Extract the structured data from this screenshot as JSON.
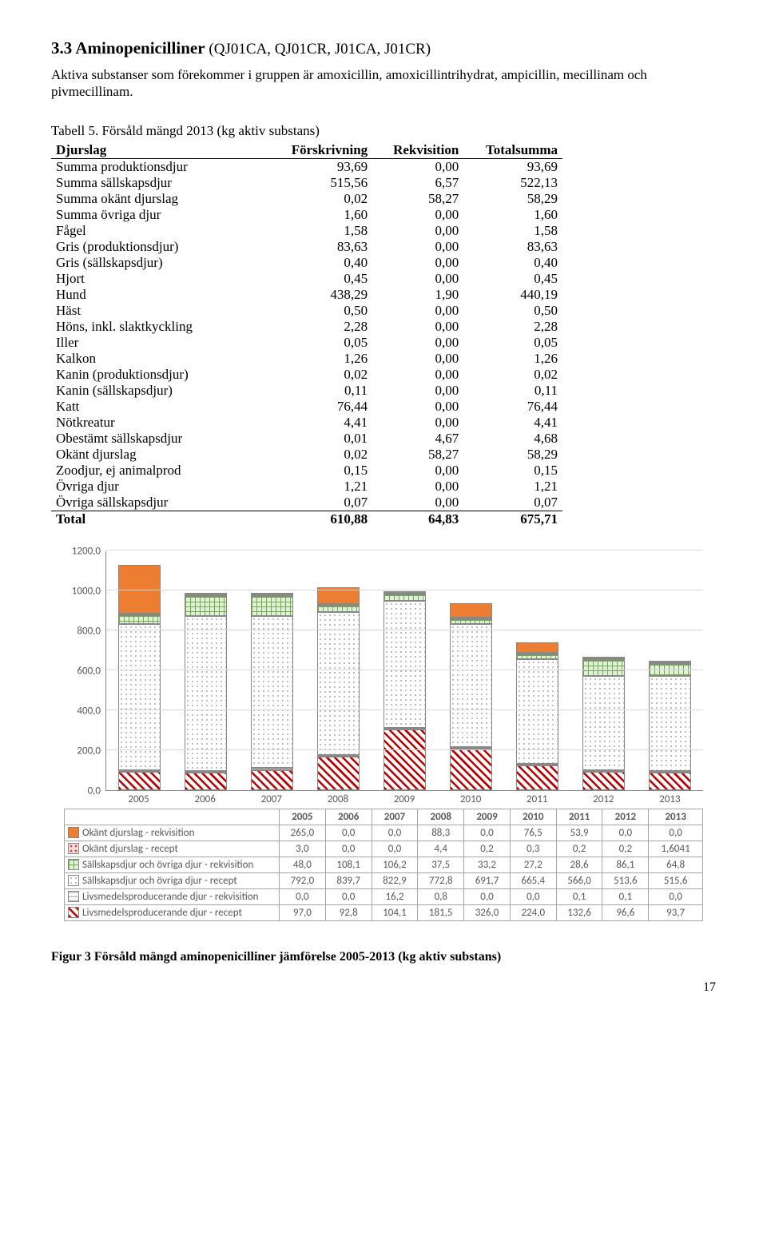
{
  "heading": {
    "number": "3.3",
    "title": "Aminopenicilliner",
    "codes": "(QJ01CA, QJ01CR, J01CA, J01CR)"
  },
  "intro": "Aktiva substanser som förekommer i gruppen är amoxicillin, amoxicillintrihydrat, ampicillin, mecillinam och pivmecillinam.",
  "table_caption": "Tabell 5. Försåld mängd 2013 (kg aktiv substans)",
  "table": {
    "headers": [
      "Djurslag",
      "Förskrivning",
      "Rekvisition",
      "Totalsumma"
    ],
    "rows": [
      [
        "Summa produktionsdjur",
        "93,69",
        "0,00",
        "93,69"
      ],
      [
        "Summa sällskapsdjur",
        "515,56",
        "6,57",
        "522,13"
      ],
      [
        "Summa okänt djurslag",
        "0,02",
        "58,27",
        "58,29"
      ],
      [
        "Summa övriga djur",
        "1,60",
        "0,00",
        "1,60"
      ],
      [
        "Fågel",
        "1,58",
        "0,00",
        "1,58"
      ],
      [
        "Gris (produktionsdjur)",
        "83,63",
        "0,00",
        "83,63"
      ],
      [
        "Gris (sällskapsdjur)",
        "0,40",
        "0,00",
        "0,40"
      ],
      [
        "Hjort",
        "0,45",
        "0,00",
        "0,45"
      ],
      [
        "Hund",
        "438,29",
        "1,90",
        "440,19"
      ],
      [
        "Häst",
        "0,50",
        "0,00",
        "0,50"
      ],
      [
        "Höns, inkl. slaktkyckling",
        "2,28",
        "0,00",
        "2,28"
      ],
      [
        "Iller",
        "0,05",
        "0,00",
        "0,05"
      ],
      [
        "Kalkon",
        "1,26",
        "0,00",
        "1,26"
      ],
      [
        "Kanin (produktionsdjur)",
        "0,02",
        "0,00",
        "0,02"
      ],
      [
        "Kanin (sällskapsdjur)",
        "0,11",
        "0,00",
        "0,11"
      ],
      [
        "Katt",
        "76,44",
        "0,00",
        "76,44"
      ],
      [
        "Nötkreatur",
        "4,41",
        "0,00",
        "4,41"
      ],
      [
        "Obestämt sällskapsdjur",
        "0,01",
        "4,67",
        "4,68"
      ],
      [
        "Okänt djurslag",
        "0,02",
        "58,27",
        "58,29"
      ],
      [
        "Zoodjur, ej animalprod",
        "0,15",
        "0,00",
        "0,15"
      ],
      [
        "Övriga djur",
        "1,21",
        "0,00",
        "1,21"
      ],
      [
        "Övriga sällskapsdjur",
        "0,07",
        "0,00",
        "0,07"
      ]
    ],
    "total": [
      "Total",
      "610,88",
      "64,83",
      "675,71"
    ]
  },
  "chart": {
    "type": "stacked-bar",
    "years": [
      "2005",
      "2006",
      "2007",
      "2008",
      "2009",
      "2010",
      "2011",
      "2012",
      "2013"
    ],
    "ymax": 1300,
    "yticks": [
      "0,0",
      "200,0",
      "400,0",
      "600,0",
      "800,0",
      "1000,0",
      "1200,0"
    ],
    "series": [
      {
        "key": "s6",
        "label": "Okänt djurslag - rekvisition",
        "pattern": "p-solid-orange",
        "values": [
          265.0,
          0.0,
          0.0,
          88.3,
          0.0,
          76.5,
          53.9,
          0.0,
          0.0
        ],
        "display": [
          "265,0",
          "0,0",
          "0,0",
          "88,3",
          "0,0",
          "76,5",
          "53,9",
          "0,0",
          "0,0"
        ]
      },
      {
        "key": "s5",
        "label": "Okänt djurslag - recept",
        "pattern": "p-dots-pink",
        "values": [
          3.0,
          0.0,
          0.0,
          4.4,
          0.2,
          0.3,
          0.2,
          0.2,
          1.6041
        ],
        "display": [
          "3,0",
          "0,0",
          "0,0",
          "4,4",
          "0,2",
          "0,3",
          "0,2",
          "0,2",
          "1,6041"
        ]
      },
      {
        "key": "s4",
        "label": "Sällskapsdjur och övriga djur - rekvisition",
        "pattern": "p-cross-green",
        "values": [
          48.0,
          108.1,
          106.2,
          37.5,
          33.2,
          27.2,
          28.6,
          86.1,
          64.8
        ],
        "display": [
          "48,0",
          "108,1",
          "106,2",
          "37,5",
          "33,2",
          "27,2",
          "28,6",
          "86,1",
          "64,8"
        ]
      },
      {
        "key": "s3",
        "label": "Sällskapsdjur och övriga djur - recept",
        "pattern": "p-dots-plain",
        "values": [
          792.0,
          839.7,
          822.9,
          772.8,
          691.7,
          665.4,
          566.0,
          513.6,
          515.6
        ],
        "display": [
          "792,0",
          "839,7",
          "822,9",
          "772,8",
          "691,7",
          "665,4",
          "566,0",
          "513,6",
          "515,6"
        ]
      },
      {
        "key": "s2",
        "label": "Livsmedelsproducerande djur - rekvisition",
        "pattern": "p-hstripe",
        "values": [
          0.0,
          0.0,
          16.2,
          0.8,
          0.0,
          0.0,
          0.1,
          0.1,
          0.0
        ],
        "display": [
          "0,0",
          "0,0",
          "16,2",
          "0,8",
          "0,0",
          "0,0",
          "0,1",
          "0,1",
          "0,0"
        ]
      },
      {
        "key": "s1",
        "label": "Livsmedelsproducerande djur - recept",
        "pattern": "p-diag-red",
        "values": [
          97.0,
          92.8,
          104.1,
          181.5,
          326.0,
          224.0,
          132.6,
          96.6,
          93.7
        ],
        "display": [
          "97,0",
          "92,8",
          "104,1",
          "181,5",
          "326,0",
          "224,0",
          "132,6",
          "96,6",
          "93,7"
        ]
      }
    ]
  },
  "fig_caption": "Figur 3 Försåld mängd aminopenicilliner jämförelse 2005-2013 (kg aktiv substans)",
  "page_number": "17"
}
